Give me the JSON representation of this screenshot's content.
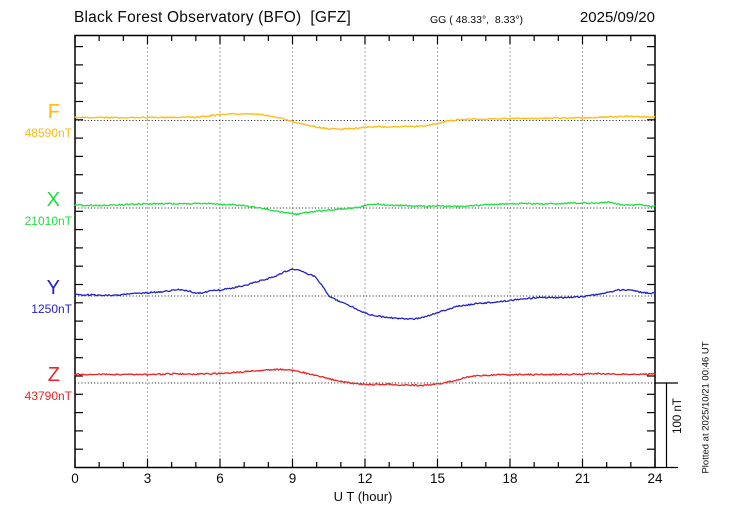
{
  "header": {
    "title": "Black Forest Observatory (BFO)  [GFZ]",
    "coords": "GG ( 48.33°,  8.33°)",
    "date": "2025/09/20"
  },
  "side": {
    "scale_label": "100 nT",
    "plotted_at": "Plotted at 2025/10/21 00:46 UT"
  },
  "chart_data": {
    "type": "line",
    "title": "Black Forest Observatory (BFO)  [GFZ] GG ( 48.33°, 8.33°) — 2025/09/20",
    "xlabel": "U T (hour)",
    "ylabel": "",
    "x_range_hours": [
      0,
      24
    ],
    "x_ticks": [
      0,
      3,
      6,
      9,
      12,
      15,
      18,
      21,
      24
    ],
    "x_minor_tick_step_hours": 1,
    "grid": "dotted vertical at 3h, dotted horizontal at each component baseline",
    "scale_bar_nT": 100,
    "series": [
      {
        "id": "F",
        "label": "F",
        "baseline_label": "48590nT",
        "baseline_nT": 48590,
        "color": "#FFBB11",
        "points_hour_deltaNT": [
          [
            0,
            3.6
          ],
          [
            0.5,
            3.6
          ],
          [
            1,
            3.6
          ],
          [
            1.5,
            3.3
          ],
          [
            2,
            3.2
          ],
          [
            2.5,
            3.4
          ],
          [
            3,
            3.6
          ],
          [
            3.5,
            3.6
          ],
          [
            4,
            3.6
          ],
          [
            4.5,
            3.8
          ],
          [
            5,
            4.1
          ],
          [
            5.5,
            5.3
          ],
          [
            6,
            7.1
          ],
          [
            6.5,
            7.7
          ],
          [
            7,
            7.7
          ],
          [
            7.5,
            7.7
          ],
          [
            8,
            5.9
          ],
          [
            8.5,
            3.0
          ],
          [
            9,
            -1.2
          ],
          [
            9.5,
            -4.7
          ],
          [
            10,
            -7.7
          ],
          [
            10.5,
            -9.8
          ],
          [
            11,
            -10.1
          ],
          [
            11.5,
            -9.5
          ],
          [
            12,
            -7.9
          ],
          [
            12.5,
            -7.5
          ],
          [
            13,
            -7.5
          ],
          [
            13.5,
            -7.1
          ],
          [
            14,
            -6.9
          ],
          [
            14.5,
            -6.5
          ],
          [
            15,
            -3.6
          ],
          [
            15.5,
            0
          ],
          [
            16,
            1.2
          ],
          [
            16.5,
            1.5
          ],
          [
            17,
            1.8
          ],
          [
            17.5,
            2.1
          ],
          [
            18,
            2.4
          ],
          [
            18.5,
            2.4
          ],
          [
            19,
            2.4
          ],
          [
            19.5,
            2.6
          ],
          [
            20,
            3.0
          ],
          [
            20.5,
            3.0
          ],
          [
            21,
            3.0
          ],
          [
            21.5,
            3.3
          ],
          [
            22,
            4.1
          ],
          [
            22.5,
            4.7
          ],
          [
            23,
            5.3
          ],
          [
            23.5,
            4.1
          ],
          [
            24,
            3.8
          ]
        ]
      },
      {
        "id": "X",
        "label": "X",
        "baseline_label": "21010nT",
        "baseline_nT": 21010,
        "color": "#22DD44",
        "points_hour_deltaNT": [
          [
            0,
            3.2
          ],
          [
            0.5,
            3.3
          ],
          [
            1,
            3.0
          ],
          [
            1.5,
            3.6
          ],
          [
            2,
            3.9
          ],
          [
            2.5,
            4.7
          ],
          [
            3,
            5.0
          ],
          [
            3.5,
            5.1
          ],
          [
            4,
            5.0
          ],
          [
            4.5,
            5.1
          ],
          [
            5,
            5.3
          ],
          [
            5.5,
            5.6
          ],
          [
            6,
            4.5
          ],
          [
            6.5,
            3.9
          ],
          [
            7,
            2.7
          ],
          [
            7.5,
            0.8
          ],
          [
            8,
            -1.5
          ],
          [
            8.5,
            -4.7
          ],
          [
            9,
            -6.7
          ],
          [
            9.2,
            -7.5
          ],
          [
            9.5,
            -5.9
          ],
          [
            10,
            -3.9
          ],
          [
            10.5,
            -2.6
          ],
          [
            11,
            -1.2
          ],
          [
            11.5,
            0
          ],
          [
            11.8,
            1.2
          ],
          [
            12.2,
            4.4
          ],
          [
            12.5,
            4.7
          ],
          [
            13,
            3.2
          ],
          [
            13.5,
            3.0
          ],
          [
            14,
            2.6
          ],
          [
            14.5,
            2.0
          ],
          [
            15,
            2.4
          ],
          [
            15.5,
            2.0
          ],
          [
            16,
            1.8
          ],
          [
            16.5,
            3.0
          ],
          [
            17,
            3.6
          ],
          [
            17.5,
            4.7
          ],
          [
            18,
            4.7
          ],
          [
            18.5,
            5.6
          ],
          [
            19,
            5.1
          ],
          [
            19.5,
            4.7
          ],
          [
            20,
            5.3
          ],
          [
            20.5,
            5.6
          ],
          [
            21,
            6.3
          ],
          [
            21.3,
            5.6
          ],
          [
            21.7,
            5.9
          ],
          [
            22.1,
            7.1
          ],
          [
            22.6,
            3.9
          ],
          [
            23,
            3.2
          ],
          [
            23.4,
            3.9
          ],
          [
            23.8,
            2.4
          ],
          [
            24,
            1.5
          ]
        ]
      },
      {
        "id": "Y",
        "label": "Y",
        "baseline_label": "1250nT",
        "baseline_nT": 1250,
        "color": "#2222CC",
        "points_hour_deltaNT": [
          [
            0,
            1.8
          ],
          [
            0.5,
            1.4
          ],
          [
            1,
            1.2
          ],
          [
            1.5,
            0.6
          ],
          [
            2,
            1.8
          ],
          [
            2.5,
            3.0
          ],
          [
            3,
            4.1
          ],
          [
            3.5,
            4.7
          ],
          [
            4,
            6.5
          ],
          [
            4.3,
            7.7
          ],
          [
            4.7,
            5.9
          ],
          [
            5.1,
            3.0
          ],
          [
            5.4,
            4.7
          ],
          [
            5.7,
            6.5
          ],
          [
            6,
            7.1
          ],
          [
            6.5,
            9.5
          ],
          [
            7,
            12.4
          ],
          [
            7.5,
            16.6
          ],
          [
            8,
            20.7
          ],
          [
            8.4,
            24.9
          ],
          [
            8.7,
            29.0
          ],
          [
            9,
            31.4
          ],
          [
            9.2,
            31.6
          ],
          [
            9.4,
            29.0
          ],
          [
            9.6,
            26.0
          ],
          [
            9.9,
            23.7
          ],
          [
            10.15,
            15.4
          ],
          [
            10.35,
            7.1
          ],
          [
            10.55,
            -1.2
          ],
          [
            10.8,
            -4.7
          ],
          [
            11,
            -7.1
          ],
          [
            11.4,
            -11.8
          ],
          [
            11.8,
            -18.3
          ],
          [
            12,
            -20.1
          ],
          [
            12.3,
            -22.5
          ],
          [
            12.9,
            -25.4
          ],
          [
            13.4,
            -26.6
          ],
          [
            14,
            -27.2
          ],
          [
            14.4,
            -25.4
          ],
          [
            14.7,
            -22.5
          ],
          [
            15,
            -19.5
          ],
          [
            15.4,
            -16.0
          ],
          [
            15.8,
            -12.4
          ],
          [
            16.5,
            -9.5
          ],
          [
            17.2,
            -7.7
          ],
          [
            18,
            -5.3
          ],
          [
            18.7,
            -3.0
          ],
          [
            19.2,
            -1.8
          ],
          [
            20,
            -2.0
          ],
          [
            20.5,
            -1.5
          ],
          [
            21,
            -0.8
          ],
          [
            21.7,
            2.0
          ],
          [
            22.1,
            4.4
          ],
          [
            22.5,
            7.1
          ],
          [
            22.8,
            7.1
          ],
          [
            23.1,
            6.3
          ],
          [
            23.4,
            4.4
          ],
          [
            23.8,
            3.2
          ],
          [
            24,
            4.1
          ]
        ]
      },
      {
        "id": "Z",
        "label": "Z",
        "baseline_label": "43790nT",
        "baseline_nT": 43790,
        "color": "#EE2222",
        "points_hour_deltaNT": [
          [
            0,
            10.3
          ],
          [
            0.5,
            10.1
          ],
          [
            1,
            10.3
          ],
          [
            1.5,
            10.1
          ],
          [
            2,
            10.1
          ],
          [
            2.5,
            10.3
          ],
          [
            3,
            10.1
          ],
          [
            3.5,
            10.3
          ],
          [
            4,
            10.7
          ],
          [
            4.5,
            10.7
          ],
          [
            5,
            10.7
          ],
          [
            5.5,
            11.0
          ],
          [
            6,
            11.2
          ],
          [
            6.5,
            12.2
          ],
          [
            7,
            13.4
          ],
          [
            7.5,
            14.6
          ],
          [
            8,
            15.7
          ],
          [
            8.5,
            16.0
          ],
          [
            8.8,
            15.7
          ],
          [
            9.2,
            14.2
          ],
          [
            9.7,
            10.7
          ],
          [
            10.3,
            6.7
          ],
          [
            10.8,
            2.7
          ],
          [
            11.4,
            0
          ],
          [
            11.9,
            -1.5
          ],
          [
            12.5,
            -1.8
          ],
          [
            13,
            -1.5
          ],
          [
            13.5,
            -2.4
          ],
          [
            14,
            -2.7
          ],
          [
            14.4,
            -3.2
          ],
          [
            14.8,
            -2.0
          ],
          [
            15.2,
            -0.4
          ],
          [
            15.8,
            3.6
          ],
          [
            16.3,
            7.5
          ],
          [
            16.9,
            9.1
          ],
          [
            17.5,
            9.8
          ],
          [
            18,
            9.8
          ],
          [
            18.5,
            10.1
          ],
          [
            19,
            9.8
          ],
          [
            19.5,
            10.1
          ],
          [
            20,
            10.3
          ],
          [
            20.5,
            10.1
          ],
          [
            21,
            10.7
          ],
          [
            21.5,
            11.2
          ],
          [
            22,
            11.0
          ],
          [
            22.5,
            10.7
          ],
          [
            23,
            10.3
          ],
          [
            23.5,
            10.3
          ],
          [
            24,
            10.7
          ]
        ]
      }
    ]
  }
}
